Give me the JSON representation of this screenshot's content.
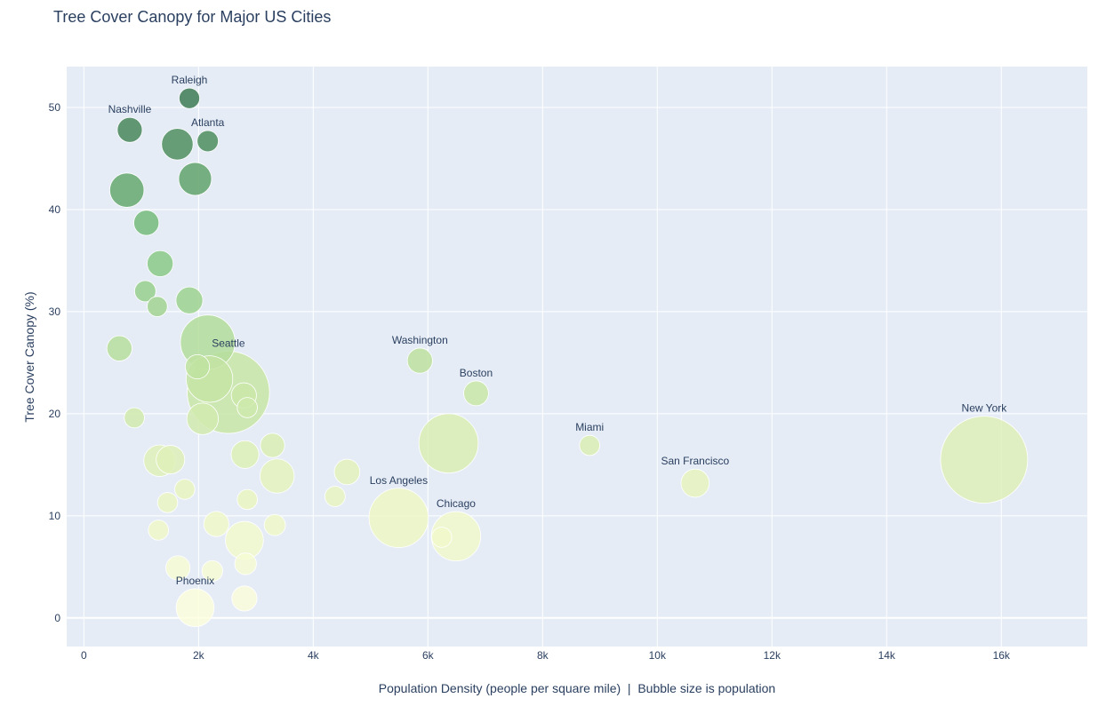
{
  "chart_data": {
    "type": "scatter",
    "title": "Tree Cover Canopy for Major US Cities",
    "xlabel": "Population Density (people per square mile)  |  Bubble size is population",
    "ylabel": "Tree Cover Canopy (%)",
    "xlim": [
      -300,
      17500
    ],
    "ylim": [
      -2.8,
      54
    ],
    "xticks": [
      0,
      2000,
      4000,
      6000,
      8000,
      10000,
      12000,
      14000,
      16000
    ],
    "xtick_labels": [
      "0",
      "2k",
      "4k",
      "6k",
      "8k",
      "10k",
      "12k",
      "14k",
      "16k"
    ],
    "yticks": [
      0,
      10,
      20,
      30,
      40,
      50
    ],
    "ytick_labels": [
      "0",
      "10",
      "20",
      "30",
      "40",
      "50"
    ],
    "grid": true,
    "colors": {
      "background": "#e5ecf6",
      "grid": "#ffffff",
      "text": "#2a3f5f",
      "scale": [
        "#ffffe0",
        "#e9f5bf",
        "#bfe2a0",
        "#7cc27e",
        "#3e7b54"
      ]
    },
    "points": [
      {
        "city": "Raleigh",
        "x": 1840,
        "y": 50.9,
        "pop": 470000
      },
      {
        "city": "Nashville",
        "x": 800,
        "y": 47.8,
        "pop": 690000
      },
      {
        "city": "",
        "x": 1630,
        "y": 46.4,
        "pop": 1100000
      },
      {
        "city": "Atlanta",
        "x": 2160,
        "y": 46.7,
        "pop": 500000
      },
      {
        "city": "",
        "x": 1940,
        "y": 43.0,
        "pop": 1200000
      },
      {
        "city": "",
        "x": 750,
        "y": 41.9,
        "pop": 1300000
      },
      {
        "city": "",
        "x": 1090,
        "y": 38.7,
        "pop": 700000
      },
      {
        "city": "",
        "x": 1330,
        "y": 34.7,
        "pop": 750000
      },
      {
        "city": "",
        "x": 1070,
        "y": 32.0,
        "pop": 500000
      },
      {
        "city": "",
        "x": 1280,
        "y": 30.5,
        "pop": 450000
      },
      {
        "city": "",
        "x": 1840,
        "y": 31.1,
        "pop": 800000
      },
      {
        "city": "",
        "x": 620,
        "y": 26.4,
        "pop": 700000
      },
      {
        "city": "",
        "x": 2160,
        "y": 27.0,
        "pop": 3300000
      },
      {
        "city": "",
        "x": 1980,
        "y": 24.6,
        "pop": 650000
      },
      {
        "city": "",
        "x": 2190,
        "y": 23.4,
        "pop": 2400000
      },
      {
        "city": "Seattle",
        "x": 2520,
        "y": 22.1,
        "pop": 7500000
      },
      {
        "city": "",
        "x": 2790,
        "y": 21.8,
        "pop": 700000
      },
      {
        "city": "",
        "x": 2850,
        "y": 20.6,
        "pop": 450000
      },
      {
        "city": "",
        "x": 880,
        "y": 19.6,
        "pop": 450000
      },
      {
        "city": "",
        "x": 2070,
        "y": 19.5,
        "pop": 1100000
      },
      {
        "city": "Washington",
        "x": 5860,
        "y": 25.2,
        "pop": 700000
      },
      {
        "city": "Boston",
        "x": 6840,
        "y": 22.0,
        "pop": 680000
      },
      {
        "city": "",
        "x": 6360,
        "y": 17.1,
        "pop": 3900000
      },
      {
        "city": "",
        "x": 3290,
        "y": 16.9,
        "pop": 650000
      },
      {
        "city": "",
        "x": 2810,
        "y": 16.0,
        "pop": 850000
      },
      {
        "city": "",
        "x": 1320,
        "y": 15.4,
        "pop": 1100000
      },
      {
        "city": "",
        "x": 1510,
        "y": 15.5,
        "pop": 900000
      },
      {
        "city": "",
        "x": 4590,
        "y": 14.3,
        "pop": 720000
      },
      {
        "city": "",
        "x": 3370,
        "y": 13.9,
        "pop": 1300000
      },
      {
        "city": "",
        "x": 1760,
        "y": 12.6,
        "pop": 450000
      },
      {
        "city": "",
        "x": 4380,
        "y": 11.9,
        "pop": 460000
      },
      {
        "city": "",
        "x": 1460,
        "y": 11.3,
        "pop": 450000
      },
      {
        "city": "",
        "x": 2850,
        "y": 11.6,
        "pop": 450000
      },
      {
        "city": "Miami",
        "x": 8820,
        "y": 16.9,
        "pop": 450000
      },
      {
        "city": "San Francisco",
        "x": 10660,
        "y": 13.2,
        "pop": 880000
      },
      {
        "city": "New York",
        "x": 15700,
        "y": 15.5,
        "pop": 8400000
      },
      {
        "city": "Los Angeles",
        "x": 5490,
        "y": 9.8,
        "pop": 3900000
      },
      {
        "city": "Chicago",
        "x": 6490,
        "y": 8.0,
        "pop": 2700000
      },
      {
        "city": "",
        "x": 6240,
        "y": 7.9,
        "pop": 450000
      },
      {
        "city": "",
        "x": 2310,
        "y": 9.2,
        "pop": 700000
      },
      {
        "city": "",
        "x": 1300,
        "y": 8.6,
        "pop": 450000
      },
      {
        "city": "",
        "x": 3330,
        "y": 9.1,
        "pop": 500000
      },
      {
        "city": "",
        "x": 2800,
        "y": 7.6,
        "pop": 1600000
      },
      {
        "city": "",
        "x": 2820,
        "y": 5.3,
        "pop": 520000
      },
      {
        "city": "",
        "x": 1640,
        "y": 4.9,
        "pop": 650000
      },
      {
        "city": "",
        "x": 2240,
        "y": 4.6,
        "pop": 480000
      },
      {
        "city": "",
        "x": 2800,
        "y": 1.9,
        "pop": 700000
      },
      {
        "city": "Phoenix",
        "x": 1940,
        "y": 1.0,
        "pop": 1600000
      }
    ]
  }
}
